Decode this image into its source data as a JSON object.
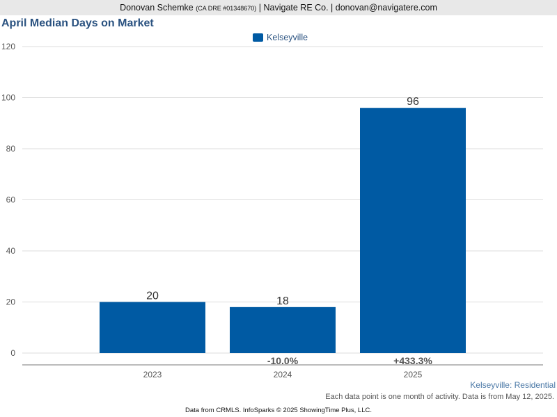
{
  "header": {
    "name": "Donovan Schemke",
    "license": "(CA DRE #01348670)",
    "company_and_email": "| Navigate RE Co. | donovan@navigatere.com"
  },
  "chart_data": {
    "type": "bar",
    "title": "April Median Days on Market",
    "categories": [
      "2023",
      "2024",
      "2025"
    ],
    "series": [
      {
        "name": "Kelseyville",
        "values": [
          20,
          18,
          96
        ],
        "color": "#005aa3"
      }
    ],
    "change_labels": [
      "",
      "-10.0%",
      "+433.3%"
    ],
    "yticks": [
      0,
      20,
      40,
      60,
      80,
      100,
      120
    ],
    "ylim": [
      0,
      120
    ],
    "grid": true,
    "legend_position": "top-center",
    "subtitle": "Kelseyville: Residential",
    "note": "Each data point is one month of activity. Data is from May 12, 2025."
  },
  "footer": {
    "source": "Data from CRMLS. InfoSparks © 2025 ShowingTime Plus, LLC."
  }
}
